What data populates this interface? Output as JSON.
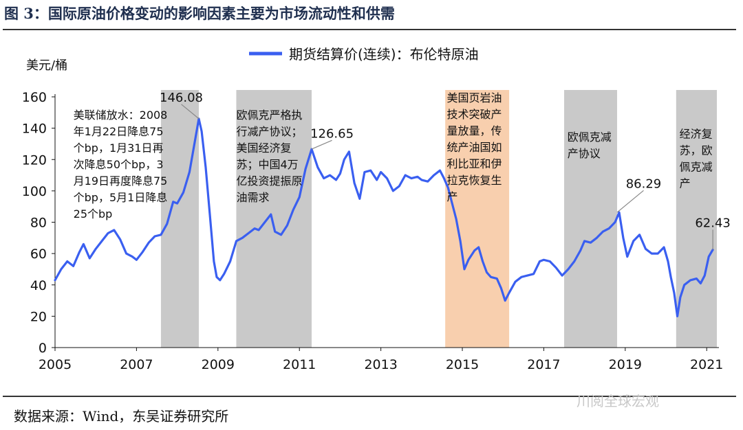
{
  "figure_title": "图 3：国际原油价格变动的影响因素主要为市场流动性和供需",
  "source": "数据来源：Wind，东吴证券研究所",
  "watermark": "川阅全球宏观",
  "colors": {
    "line": "#3a5ff0",
    "shade_gray": "#c9c9c9",
    "shade_orange": "#f8cfae",
    "axis": "#111111",
    "title": "#1f2f4f"
  },
  "chart_data": {
    "type": "line",
    "ylabel": "美元/桶",
    "legend": "期货结算价(连续)：布伦特原油",
    "legend_position": "top-center",
    "xlim": [
      2005,
      2021.3
    ],
    "ylim": [
      0,
      160
    ],
    "yticks": [
      0,
      20,
      40,
      60,
      80,
      100,
      120,
      140,
      160
    ],
    "xticks": [
      2005,
      2007,
      2009,
      2011,
      2013,
      2015,
      2017,
      2019,
      2021
    ],
    "grid": false,
    "series": [
      {
        "name": "期货结算价(连续)：布伦特原油",
        "x": [
          2005.0,
          2005.15,
          2005.3,
          2005.45,
          2005.6,
          2005.7,
          2005.85,
          2006.0,
          2006.15,
          2006.3,
          2006.45,
          2006.6,
          2006.75,
          2006.9,
          2007.0,
          2007.15,
          2007.3,
          2007.45,
          2007.6,
          2007.75,
          2007.9,
          2008.0,
          2008.15,
          2008.3,
          2008.45,
          2008.53,
          2008.6,
          2008.7,
          2008.8,
          2008.9,
          2008.97,
          2009.05,
          2009.15,
          2009.3,
          2009.45,
          2009.6,
          2009.75,
          2009.9,
          2010.0,
          2010.15,
          2010.3,
          2010.4,
          2010.55,
          2010.7,
          2010.85,
          2011.0,
          2011.15,
          2011.3,
          2011.45,
          2011.6,
          2011.75,
          2011.9,
          2012.0,
          2012.1,
          2012.22,
          2012.35,
          2012.48,
          2012.6,
          2012.75,
          2012.9,
          2013.0,
          2013.15,
          2013.3,
          2013.45,
          2013.6,
          2013.75,
          2013.9,
          2014.0,
          2014.15,
          2014.3,
          2014.45,
          2014.55,
          2014.65,
          2014.75,
          2014.85,
          2014.95,
          2015.05,
          2015.15,
          2015.3,
          2015.4,
          2015.5,
          2015.6,
          2015.7,
          2015.85,
          2015.95,
          2016.05,
          2016.15,
          2016.3,
          2016.45,
          2016.6,
          2016.75,
          2016.9,
          2017.0,
          2017.15,
          2017.3,
          2017.45,
          2017.6,
          2017.75,
          2017.9,
          2018.0,
          2018.15,
          2018.3,
          2018.45,
          2018.6,
          2018.75,
          2018.85,
          2018.95,
          2019.05,
          2019.2,
          2019.35,
          2019.5,
          2019.65,
          2019.8,
          2019.95,
          2020.05,
          2020.12,
          2020.2,
          2020.28,
          2020.35,
          2020.45,
          2020.6,
          2020.75,
          2020.85,
          2020.95,
          2021.05,
          2021.15
        ],
        "values": [
          43,
          50,
          55,
          52,
          61,
          66,
          57,
          63,
          68,
          73,
          75,
          69,
          60,
          58,
          56,
          61,
          67,
          71,
          72,
          79,
          93,
          92,
          99,
          112,
          134,
          146.08,
          138,
          115,
          85,
          55,
          45,
          43,
          47,
          55,
          68,
          70,
          73,
          76,
          75,
          80,
          85,
          74,
          72,
          78,
          88,
          96,
          114,
          126.65,
          115,
          108,
          110,
          107,
          111,
          120,
          125,
          105,
          95,
          112,
          113,
          107,
          112,
          108,
          100,
          103,
          110,
          108,
          109,
          107,
          106,
          110,
          113,
          108,
          102,
          92,
          82,
          68,
          50,
          56,
          62,
          64,
          55,
          48,
          45,
          44,
          38,
          30,
          35,
          42,
          45,
          46,
          47,
          55,
          56,
          55,
          51,
          46,
          50,
          55,
          62,
          68,
          67,
          70,
          74,
          76,
          80,
          86.29,
          70,
          58,
          68,
          72,
          63,
          60,
          60,
          64,
          55,
          45,
          35,
          20,
          32,
          40,
          43,
          44,
          41,
          46,
          58,
          62.43
        ]
      }
    ],
    "shaded_periods": [
      {
        "start": 2007.6,
        "end": 2008.53,
        "color": "gray"
      },
      {
        "start": 2009.45,
        "end": 2011.3,
        "color": "gray"
      },
      {
        "start": 2014.58,
        "end": 2016.15,
        "color": "orange"
      },
      {
        "start": 2017.5,
        "end": 2018.8,
        "color": "gray"
      },
      {
        "start": 2020.25,
        "end": 2021.25,
        "color": "gray"
      }
    ],
    "peak_labels": [
      {
        "x": 2008.53,
        "y": 146.08,
        "text": "146.08",
        "lx": 2008.1,
        "ly": 157
      },
      {
        "x": 2011.3,
        "y": 126.65,
        "text": "126.65",
        "lx": 2011.8,
        "ly": 134
      },
      {
        "x": 2018.8,
        "y": 86.29,
        "text": "86.29",
        "lx": 2019.45,
        "ly": 102
      },
      {
        "x": 2021.15,
        "y": 62.43,
        "text": "62.43",
        "lx": 2021.15,
        "ly": 77
      }
    ],
    "annotations": [
      {
        "x": 2005.45,
        "y": 146,
        "lines": [
          "美联储放水：2008",
          "年1月22日降息75",
          "个bp，1月31日再",
          "次降息50个bp，3",
          "月19日再度降息75",
          "个bp，5月1日降息",
          "25个bp"
        ]
      },
      {
        "x": 2009.45,
        "y": 146,
        "lines": [
          "欧佩克严格执",
          "行减产协议；",
          "美国经济复",
          "苏；中国4万",
          "亿投资提振原",
          "油需求"
        ]
      },
      {
        "x": 2014.62,
        "y": 157,
        "lines": [
          "美国页岩油",
          "技术突破产",
          "量放量，传",
          "统产油国如",
          "利比亚和伊",
          "拉克恢复生",
          "产"
        ]
      },
      {
        "x": 2017.58,
        "y": 132,
        "lines": [
          "欧佩克减",
          "产协议"
        ]
      },
      {
        "x": 2020.33,
        "y": 134,
        "lines": [
          "经济复",
          "苏，欧",
          "佩克减",
          "产"
        ]
      }
    ]
  }
}
